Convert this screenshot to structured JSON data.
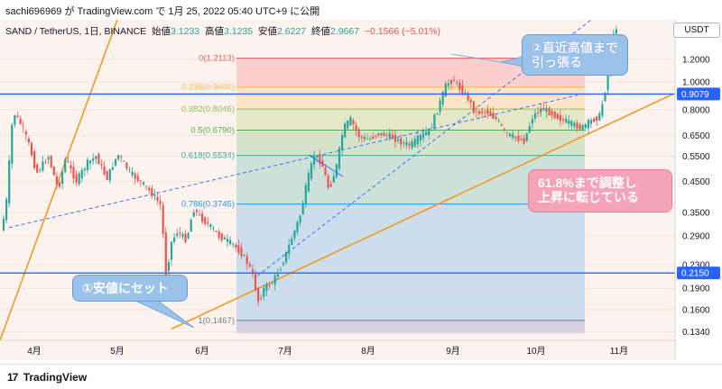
{
  "caption": "sachi696969 が TradingView.com で 1月 25, 2022 05:40 UTC+9 に公開",
  "header": {
    "symbol": "SAND / TetherUS, 1日, BINANCE",
    "open_label": "始値",
    "open_value": "3.1233",
    "high_label": "高値",
    "high_value": "3.1235",
    "low_label": "安値",
    "low_value": "2.6227",
    "close_label": "終値",
    "close_value": "2.9667",
    "change": "−0.1566 (−5.01%)",
    "currency": "USDT"
  },
  "annotations": {
    "top_note": "②直近高値まで\n引っ張る",
    "pink_note": "61.8%まで調整し\n上昇に転じている",
    "low_note": "①安値にセット"
  },
  "footer": {
    "logo_mark": "17",
    "logo_text": "TradingView"
  },
  "colors": {
    "up": "#26a69a",
    "down": "#ef5350",
    "trend": "#f7931a",
    "level": "#2962ff"
  },
  "chart_data": {
    "type": "candlestick",
    "scale": "log",
    "x_ticks": [
      "4月",
      "5月",
      "6月",
      "7月",
      "8月",
      "9月",
      "10月",
      "11月"
    ],
    "y_ticks": [
      "1.2000",
      "1.0000",
      "0.8000",
      "0.6500",
      "0.5500",
      "0.4500",
      "0.3500",
      "0.2900",
      "0.2300",
      "0.1900",
      "0.1600",
      "0.1340"
    ],
    "ylim": [
      0.125,
      1.65
    ],
    "price_labels": [
      {
        "value": 0.9079,
        "text": "0.9079"
      },
      {
        "value": 0.215,
        "text": "0.2150"
      }
    ],
    "fibonacci": [
      {
        "text": "0(1.2113)",
        "value": 1.2113
      },
      {
        "text": "0.236(0.9600)",
        "value": 0.96
      },
      {
        "text": "0.382(0.8046)",
        "value": 0.8046
      },
      {
        "text": "0.5(0.6790)",
        "value": 0.679
      },
      {
        "text": "0.618(0.5534)",
        "value": 0.5534
      },
      {
        "text": "0.786(0.3745)",
        "value": 0.3745
      },
      {
        "text": "1(0.1467)",
        "value": 0.1467
      }
    ],
    "fib_colors": [
      "#f7525f",
      "#ffb74d",
      "#8bc34a",
      "#4caf50",
      "#26a69a",
      "#2196f3",
      "#787b86"
    ],
    "path": [
      [
        0,
        0.28
      ],
      [
        8,
        0.36
      ],
      [
        16,
        0.79
      ],
      [
        26,
        0.7
      ],
      [
        34,
        0.6
      ],
      [
        42,
        0.48
      ],
      [
        55,
        0.55
      ],
      [
        66,
        0.42
      ],
      [
        74,
        0.54
      ],
      [
        86,
        0.45
      ],
      [
        98,
        0.52
      ],
      [
        108,
        0.55
      ],
      [
        120,
        0.46
      ],
      [
        132,
        0.56
      ],
      [
        146,
        0.48
      ],
      [
        160,
        0.44
      ],
      [
        172,
        0.4
      ],
      [
        180,
        0.37
      ],
      [
        186,
        0.2
      ],
      [
        190,
        0.27
      ],
      [
        198,
        0.3
      ],
      [
        208,
        0.28
      ],
      [
        216,
        0.36
      ],
      [
        226,
        0.33
      ],
      [
        236,
        0.31
      ],
      [
        244,
        0.29
      ],
      [
        252,
        0.28
      ],
      [
        260,
        0.27
      ],
      [
        270,
        0.25
      ],
      [
        280,
        0.22
      ],
      [
        288,
        0.17
      ],
      [
        294,
        0.19
      ],
      [
        304,
        0.2
      ],
      [
        314,
        0.23
      ],
      [
        324,
        0.28
      ],
      [
        334,
        0.34
      ],
      [
        342,
        0.45
      ],
      [
        350,
        0.56
      ],
      [
        358,
        0.52
      ],
      [
        366,
        0.42
      ],
      [
        374,
        0.5
      ],
      [
        382,
        0.69
      ],
      [
        390,
        0.74
      ],
      [
        400,
        0.64
      ],
      [
        410,
        0.63
      ],
      [
        420,
        0.66
      ],
      [
        432,
        0.65
      ],
      [
        444,
        0.62
      ],
      [
        456,
        0.6
      ],
      [
        466,
        0.64
      ],
      [
        478,
        0.68
      ],
      [
        488,
        0.83
      ],
      [
        496,
        0.98
      ],
      [
        504,
        1.02
      ],
      [
        512,
        0.94
      ],
      [
        520,
        0.88
      ],
      [
        528,
        0.78
      ],
      [
        540,
        0.79
      ],
      [
        552,
        0.74
      ],
      [
        562,
        0.66
      ],
      [
        572,
        0.64
      ],
      [
        582,
        0.62
      ],
      [
        592,
        0.76
      ],
      [
        602,
        0.81
      ],
      [
        614,
        0.77
      ],
      [
        624,
        0.74
      ],
      [
        636,
        0.71
      ],
      [
        646,
        0.69
      ],
      [
        656,
        0.73
      ],
      [
        666,
        0.76
      ],
      [
        674,
        1.0
      ],
      [
        680,
        1.4
      ],
      [
        686,
        1.62
      ]
    ],
    "trendlines": [
      {
        "style": "solid",
        "color": "#f7931a",
        "points": [
          [
            0,
            0.125
          ],
          [
            130,
            1.65
          ]
        ]
      },
      {
        "style": "solid",
        "color": "#f7931a",
        "points": [
          [
            190,
            0.137
          ],
          [
            745,
            0.905
          ]
        ]
      },
      {
        "style": "dashed",
        "color": "#2962ff",
        "points": [
          [
            10,
            0.31
          ],
          [
            640,
            0.9
          ]
        ]
      },
      {
        "style": "dashed",
        "color": "#2962ff",
        "points": [
          [
            285,
            0.21
          ],
          [
            655,
            1.65
          ]
        ]
      }
    ]
  }
}
